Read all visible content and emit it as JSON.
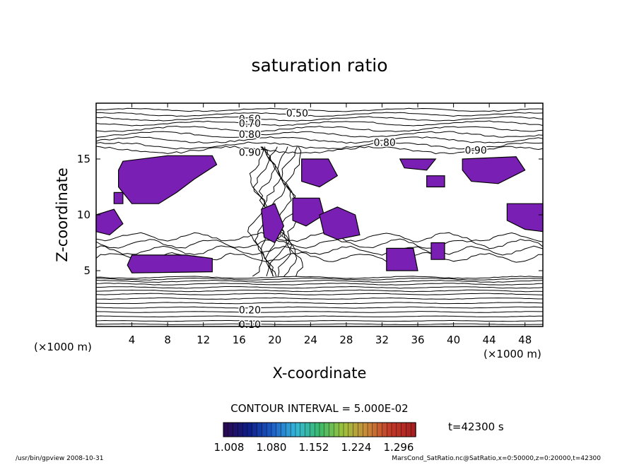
{
  "chart_data": {
    "type": "contour",
    "title": "saturation ratio",
    "xlabel": "X-coordinate",
    "ylabel": "Z-coordinate",
    "x_unit_label": "(×1000 m)",
    "z_unit_label": "(×1000 m)",
    "xlim": [
      0,
      50
    ],
    "ylim": [
      0,
      20
    ],
    "x_ticks": [
      4,
      8,
      12,
      16,
      20,
      24,
      28,
      32,
      36,
      40,
      44,
      48
    ],
    "y_ticks": [
      5,
      10,
      15
    ],
    "contour_interval_label": "CONTOUR INTERVAL = 5.000E-02",
    "contour_labels": [
      {
        "text": "0.50",
        "x": 22.5,
        "z": 19.1
      },
      {
        "text": "0.60",
        "x": 17.2,
        "z": 18.6
      },
      {
        "text": "0.70",
        "x": 17.2,
        "z": 18.2
      },
      {
        "text": "0.80",
        "x": 17.2,
        "z": 17.2
      },
      {
        "text": "0.80",
        "x": 32.3,
        "z": 16.5
      },
      {
        "text": "0.90",
        "x": 17.2,
        "z": 15.6
      },
      {
        "text": "0.90",
        "x": 42.5,
        "z": 15.8
      },
      {
        "text": "0.10",
        "x": 17.2,
        "z": 0.2
      },
      {
        "text": "0.20",
        "x": 17.2,
        "z": 1.5
      }
    ],
    "colorbar": {
      "ticks": [
        "1.008",
        "1.080",
        "1.152",
        "1.224",
        "1.296"
      ],
      "colors": [
        "#2a0a55",
        "#0b1f86",
        "#1f5ec8",
        "#35b7d8",
        "#3ab86b",
        "#9cc23c",
        "#c88a3a",
        "#c23a2a",
        "#a82020"
      ]
    },
    "supersaturated_color": "#7a1fb3",
    "time_label": "t=42300 s"
  },
  "footer": {
    "left": "/usr/bin/gpview   2008-10-31",
    "right": "MarsCond_SatRatio.nc@SatRatio,x=0:50000,z=0:20000,t=42300"
  }
}
